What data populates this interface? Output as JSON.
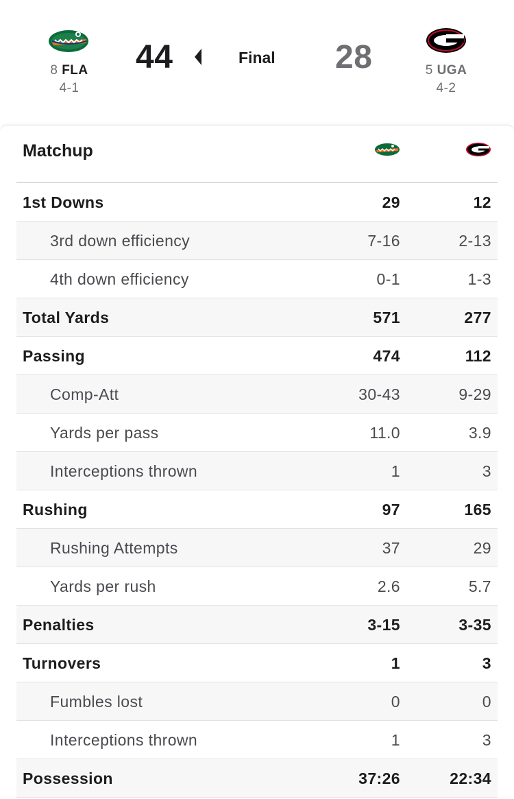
{
  "game": {
    "status": "Final",
    "away": {
      "rank": "8",
      "abbr": "FLA",
      "record": "4-1",
      "score": "44",
      "logo_icon": "florida-gators-logo",
      "color": "#0b6b3a",
      "accent": "#f26a21"
    },
    "home": {
      "rank": "5",
      "abbr": "UGA",
      "record": "4-2",
      "score": "28",
      "logo_icon": "georgia-g-logo",
      "color": "#000000",
      "accent": "#ba0c2f"
    },
    "winner": "away"
  },
  "matchup": {
    "title": "Matchup",
    "rows": [
      {
        "label": "1st Downs",
        "away": "29",
        "home": "12",
        "level": "main"
      },
      {
        "label": "3rd down efficiency",
        "away": "7-16",
        "home": "2-13",
        "level": "sub"
      },
      {
        "label": "4th down efficiency",
        "away": "0-1",
        "home": "1-3",
        "level": "sub"
      },
      {
        "label": "Total Yards",
        "away": "571",
        "home": "277",
        "level": "main"
      },
      {
        "label": "Passing",
        "away": "474",
        "home": "112",
        "level": "main"
      },
      {
        "label": "Comp-Att",
        "away": "30-43",
        "home": "9-29",
        "level": "sub"
      },
      {
        "label": "Yards per pass",
        "away": "11.0",
        "home": "3.9",
        "level": "sub"
      },
      {
        "label": "Interceptions thrown",
        "away": "1",
        "home": "3",
        "level": "sub"
      },
      {
        "label": "Rushing",
        "away": "97",
        "home": "165",
        "level": "main"
      },
      {
        "label": "Rushing Attempts",
        "away": "37",
        "home": "29",
        "level": "sub"
      },
      {
        "label": "Yards per rush",
        "away": "2.6",
        "home": "5.7",
        "level": "sub"
      },
      {
        "label": "Penalties",
        "away": "3-15",
        "home": "3-35",
        "level": "main"
      },
      {
        "label": "Turnovers",
        "away": "1",
        "home": "3",
        "level": "main"
      },
      {
        "label": "Fumbles lost",
        "away": "0",
        "home": "0",
        "level": "sub"
      },
      {
        "label": "Interceptions thrown",
        "away": "1",
        "home": "3",
        "level": "sub"
      },
      {
        "label": "Possession",
        "away": "37:26",
        "home": "22:34",
        "level": "main"
      }
    ]
  }
}
